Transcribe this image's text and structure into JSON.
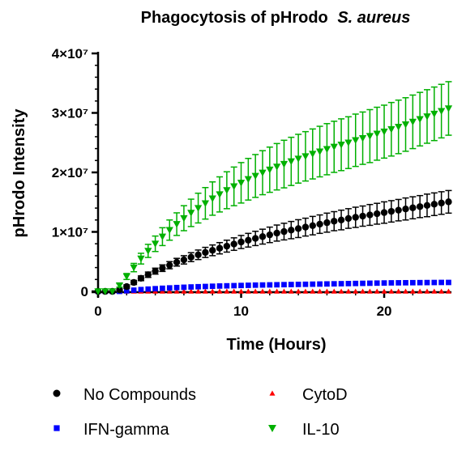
{
  "chart_data": {
    "type": "scatter",
    "title": "Phagocytosis of pHrodo",
    "title_italic": "S. aureus",
    "xlabel": "Time (Hours)",
    "ylabel": "pHrodo Intensity",
    "xlim": [
      0,
      24.7
    ],
    "ylim": [
      0,
      40000000
    ],
    "x_ticks": [
      0,
      10,
      20
    ],
    "y_ticks": [
      {
        "value": 0,
        "label": "0"
      },
      {
        "value": 10000000,
        "label": "1×10⁷"
      },
      {
        "value": 20000000,
        "label": "2×10⁷"
      },
      {
        "value": 30000000,
        "label": "3×10⁷"
      },
      {
        "value": 40000000,
        "label": "4×10⁷"
      }
    ],
    "grid": false,
    "legend_position": "bottom",
    "x_start": 0,
    "x_step": 0.5,
    "series": [
      {
        "name": "No Compounds",
        "color": "#000000",
        "marker": "circle",
        "error_bars": true,
        "values": [
          0,
          0,
          0,
          250000,
          800000,
          1500000,
          2200000,
          2800000,
          3400000,
          3900000,
          4400000,
          4900000,
          5300000,
          5750000,
          6150000,
          6550000,
          6900000,
          7250000,
          7600000,
          7950000,
          8300000,
          8600000,
          8900000,
          9200000,
          9500000,
          9800000,
          10050000,
          10300000,
          10550000,
          10800000,
          11050000,
          11300000,
          11550000,
          11800000,
          12000000,
          12250000,
          12450000,
          12650000,
          12850000,
          13050000,
          13250000,
          13450000,
          13650000,
          13850000,
          14050000,
          14250000,
          14450000,
          14650000,
          14850000,
          15050000
        ],
        "error": [
          0,
          0,
          0,
          200000,
          300000,
          350000,
          400000,
          450000,
          500000,
          550000,
          600000,
          650000,
          700000,
          750000,
          800000,
          850000,
          900000,
          950000,
          1000000,
          1050000,
          1100000,
          1150000,
          1200000,
          1250000,
          1300000,
          1350000,
          1400000,
          1450000,
          1500000,
          1500000,
          1550000,
          1550000,
          1600000,
          1600000,
          1650000,
          1650000,
          1700000,
          1700000,
          1750000,
          1750000,
          1800000,
          1800000,
          1800000,
          1850000,
          1850000,
          1850000,
          1900000,
          1900000,
          1900000,
          1900000
        ]
      },
      {
        "name": "CytoD",
        "color": "#ff0000",
        "marker": "triangle-up",
        "error_bars": false,
        "values": [
          0,
          0,
          0,
          0,
          0,
          0,
          0,
          0,
          0,
          0,
          0,
          0,
          0,
          0,
          0,
          0,
          0,
          0,
          0,
          0,
          0,
          0,
          0,
          0,
          0,
          0,
          0,
          0,
          0,
          0,
          0,
          0,
          0,
          0,
          0,
          0,
          0,
          0,
          0,
          0,
          0,
          0,
          0,
          0,
          0,
          0,
          0,
          0,
          0,
          0
        ]
      },
      {
        "name": "IFN-gamma",
        "color": "#0000ff",
        "marker": "square",
        "error_bars": false,
        "values": [
          0,
          0,
          0,
          0,
          100000,
          200000,
          300000,
          380000,
          450000,
          520000,
          580000,
          640000,
          690000,
          740000,
          780000,
          820000,
          860000,
          900000,
          930000,
          960000,
          990000,
          1020000,
          1050000,
          1070000,
          1090000,
          1110000,
          1130000,
          1150000,
          1170000,
          1190000,
          1210000,
          1230000,
          1250000,
          1270000,
          1290000,
          1310000,
          1330000,
          1350000,
          1370000,
          1390000,
          1410000,
          1430000,
          1440000,
          1450000,
          1460000,
          1470000,
          1480000,
          1490000,
          1500000,
          1500000
        ]
      },
      {
        "name": "IL-10",
        "color": "#00b000",
        "marker": "triangle-down",
        "error_bars": true,
        "values": [
          0,
          0,
          0,
          1000000,
          2500000,
          4000000,
          5500000,
          6800000,
          8000000,
          9200000,
          10300000,
          11300000,
          12300000,
          13200000,
          14000000,
          14800000,
          15600000,
          16300000,
          17000000,
          17650000,
          18250000,
          18850000,
          19400000,
          19950000,
          20450000,
          20950000,
          21400000,
          21850000,
          22300000,
          22700000,
          23100000,
          23500000,
          23900000,
          24300000,
          24650000,
          25000000,
          25400000,
          25750000,
          26100000,
          26500000,
          26850000,
          27250000,
          27650000,
          28050000,
          28500000,
          28950000,
          29400000,
          29850000,
          30300000,
          30750000
        ],
        "error": [
          0,
          0,
          0,
          300000,
          500000,
          700000,
          900000,
          1100000,
          1300000,
          1500000,
          1700000,
          1900000,
          2100000,
          2300000,
          2500000,
          2650000,
          2800000,
          2950000,
          3100000,
          3250000,
          3400000,
          3500000,
          3600000,
          3700000,
          3800000,
          3900000,
          4000000,
          4050000,
          4100000,
          4150000,
          4200000,
          4250000,
          4300000,
          4300000,
          4350000,
          4350000,
          4400000,
          4400000,
          4450000,
          4450000,
          4450000,
          4500000,
          4500000,
          4500000,
          4500000,
          4500000,
          4500000,
          4500000,
          4500000,
          4500000
        ]
      }
    ]
  }
}
